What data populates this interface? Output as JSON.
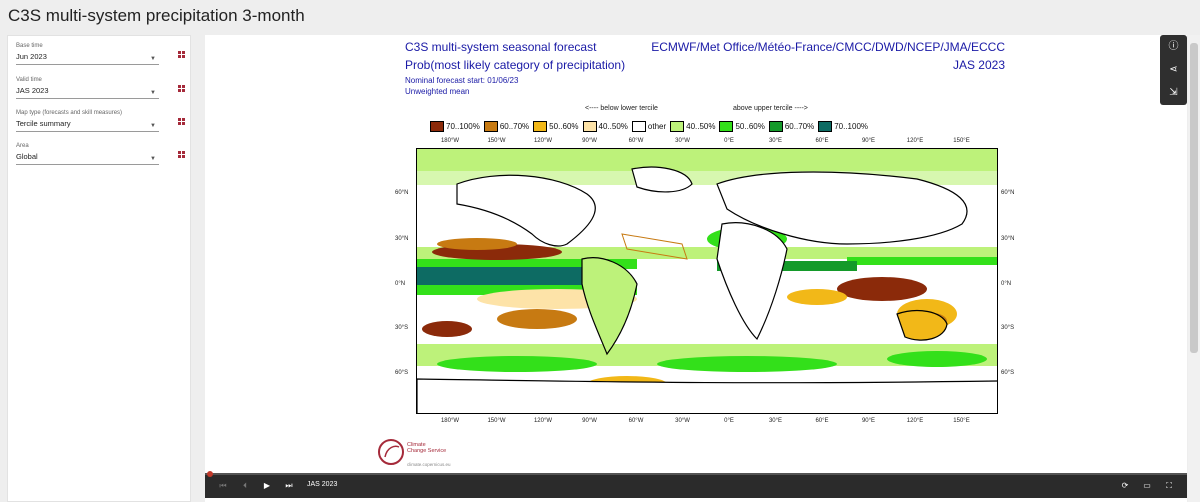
{
  "page": {
    "title": "C3S multi-system precipitation 3-month"
  },
  "sidebar": {
    "fields": [
      {
        "label": "Base time",
        "value": "Jun 2023"
      },
      {
        "label": "Valid time",
        "value": "JAS 2023"
      },
      {
        "label": "Map type (forecasts and skill measures)",
        "value": "Tercile summary"
      },
      {
        "label": "Area",
        "value": "Global"
      }
    ]
  },
  "figure": {
    "title_line1": "C3S multi-system seasonal forecast",
    "title_line2": "Prob(most likely category of precipitation)",
    "subtitle_line1": "Nominal forecast start: 01/06/23",
    "subtitle_line2": "Unweighted mean",
    "centres": "ECMWF/Met Office/Météo-France/CMCC/DWD/NCEP/JMA/ECCC",
    "season": "JAS 2023",
    "legend_below": "<---- below lower tercile",
    "legend_above": "above upper tercile ---->",
    "legend": [
      {
        "label": "70..100%",
        "color": "#8b2a0a"
      },
      {
        "label": "60..70%",
        "color": "#c77a12"
      },
      {
        "label": "50..60%",
        "color": "#f2b818"
      },
      {
        "label": "40..50%",
        "color": "#fde3a8"
      },
      {
        "label": "other",
        "color": "#ffffff"
      },
      {
        "label": "40..50%",
        "color": "#bdf27a"
      },
      {
        "label": "50..60%",
        "color": "#33e01a"
      },
      {
        "label": "60..70%",
        "color": "#149a2a"
      },
      {
        "label": "70..100%",
        "color": "#0d6b63"
      }
    ],
    "lon_ticks": [
      "180°W",
      "150°W",
      "120°W",
      "90°W",
      "60°W",
      "30°W",
      "0°E",
      "30°E",
      "60°E",
      "90°E",
      "120°E",
      "150°E"
    ],
    "lat_ticks": [
      "60°N",
      "30°N",
      "0°N",
      "30°S",
      "60°S"
    ],
    "logo_text_1": "Climate",
    "logo_text_2": "Change Service",
    "logo_url": "climate.copernicus.eu"
  },
  "player": {
    "frame_label": "JAS 2023"
  },
  "icons": {
    "info": "info-icon",
    "share": "share-icon",
    "export": "export-icon",
    "first": "skip-first-icon",
    "prev": "step-back-icon",
    "play": "play-icon",
    "next": "step-forward-icon",
    "loop": "loop-icon",
    "captions": "captions-icon",
    "fullscreen": "fullscreen-icon"
  }
}
